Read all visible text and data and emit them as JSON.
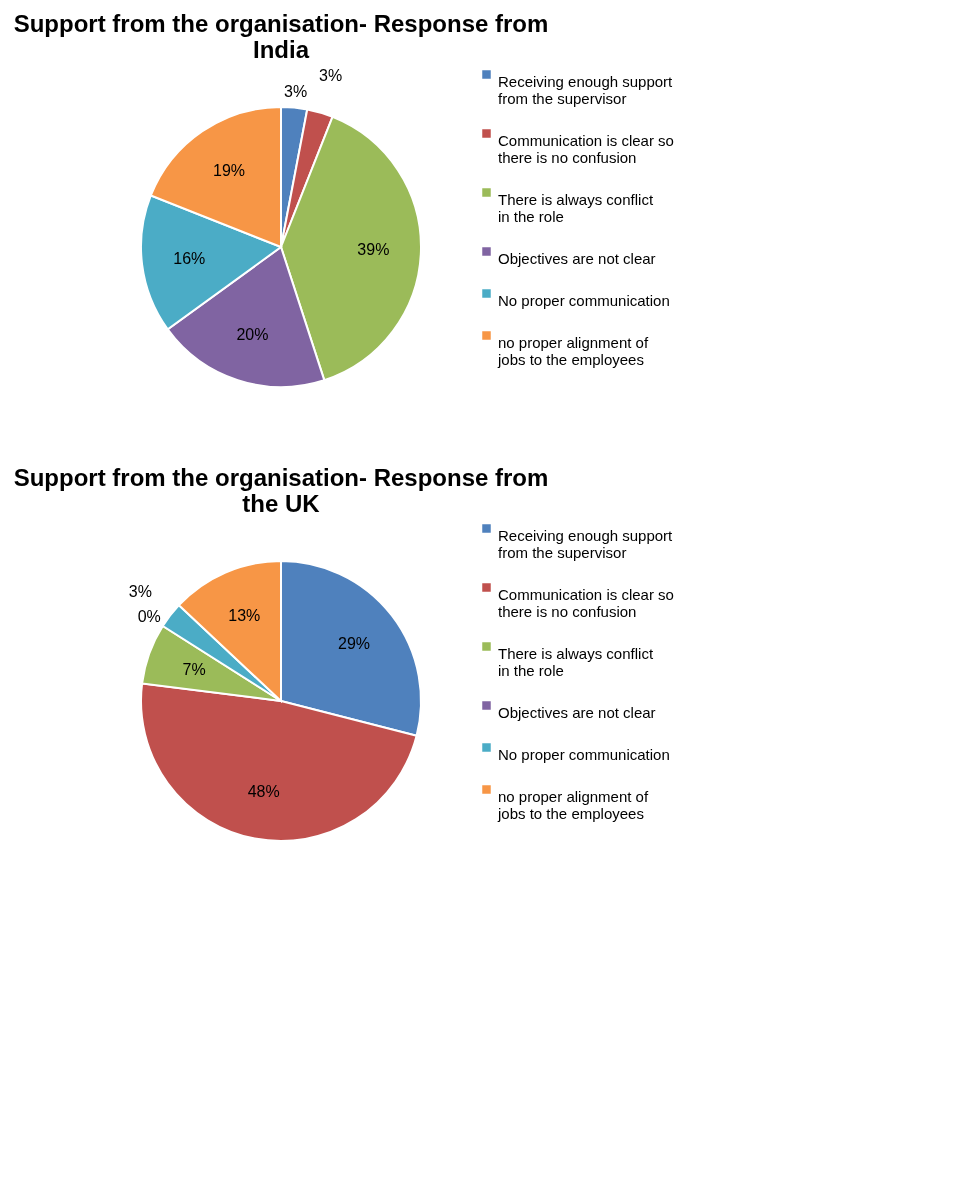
{
  "chart_data": [
    {
      "type": "pie",
      "title": "Support from the organisation- Response from India",
      "categories": [
        "Receiving enough support from the supervisor",
        "Communication is clear so there is no confusion",
        "There is always conflict in the role",
        "Objectives are not clear",
        "No proper communication",
        "no proper alignment of jobs to the employees"
      ],
      "values": [
        3,
        3,
        39,
        20,
        16,
        19
      ],
      "value_labels": [
        "3%",
        "3%",
        "39%",
        "20%",
        "16%",
        "19%"
      ],
      "colors": [
        "#4f81bd",
        "#c0504d",
        "#9bbb59",
        "#8064a2",
        "#4bacc6",
        "#f79646"
      ],
      "legend": "right"
    },
    {
      "type": "pie",
      "title": "Support from the organisation- Response from the UK",
      "categories": [
        "Receiving enough support from the supervisor",
        "Communication is clear so there is no confusion",
        "There is always conflict in the role",
        "Objectives are not clear",
        "No proper communication",
        "no proper alignment of jobs to the employees"
      ],
      "values": [
        29,
        48,
        7,
        0,
        3,
        13
      ],
      "value_labels": [
        "29%",
        "48%",
        "7%",
        "0%",
        "3%",
        "13%"
      ],
      "colors": [
        "#4f81bd",
        "#c0504d",
        "#9bbb59",
        "#8064a2",
        "#4bacc6",
        "#f79646"
      ],
      "legend": "right"
    }
  ]
}
